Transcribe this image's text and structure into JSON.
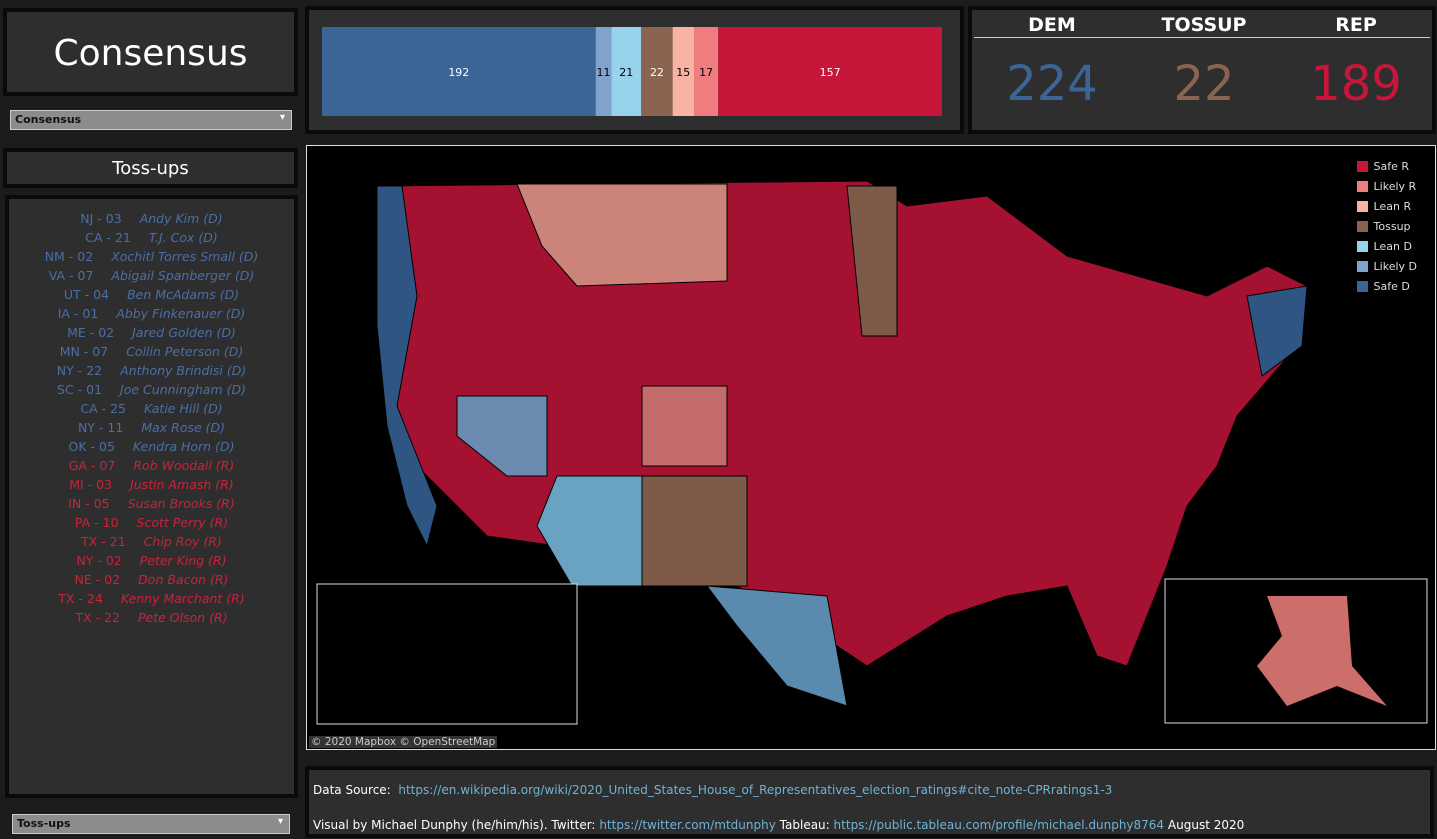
{
  "header": {
    "title": "Consensus",
    "dropdown": "Consensus"
  },
  "chart_data": {
    "type": "stacked-bar",
    "xlim": [
      0,
      435
    ],
    "series": [
      {
        "name": "Safe D",
        "color": "#3a6595",
        "text_color": "#ffffff",
        "values": [
          192
        ]
      },
      {
        "name": "Likely D",
        "color": "#7fa3cc",
        "text_color": "#000000",
        "values": [
          11
        ]
      },
      {
        "name": "Lean D",
        "color": "#98d3ee",
        "text_color": "#000000",
        "values": [
          21
        ]
      },
      {
        "name": "Tossup",
        "color": "#8a6450",
        "text_color": "#ffffff",
        "values": [
          22
        ]
      },
      {
        "name": "Lean R",
        "color": "#f8b3a3",
        "text_color": "#000000",
        "values": [
          15
        ]
      },
      {
        "name": "Likely R",
        "color": "#ef7d7f",
        "text_color": "#000000",
        "values": [
          17
        ]
      },
      {
        "name": "Safe R",
        "color": "#c8163a",
        "text_color": "#ffffff",
        "values": [
          157
        ]
      }
    ]
  },
  "totals": [
    {
      "label": "DEM",
      "value": 224,
      "color": "#3a6595"
    },
    {
      "label": "TOSSUP",
      "value": 22,
      "color": "#8a6450"
    },
    {
      "label": "REP",
      "value": 189,
      "color": "#c8163a"
    }
  ],
  "tossups": {
    "title": "Toss-ups",
    "dropdown": "Toss-ups",
    "rows": [
      {
        "district": "NJ - 03",
        "name": "Andy Kim (D)",
        "color": "#4a6fa5"
      },
      {
        "district": "CA - 21",
        "name": "T.J. Cox (D)",
        "color": "#4a6fa5"
      },
      {
        "district": "NM - 02",
        "name": "Xochitl Torres Small (D)",
        "color": "#4a6fa5"
      },
      {
        "district": "VA - 07",
        "name": "Abigail Spanberger (D)",
        "color": "#4a6fa5"
      },
      {
        "district": "UT - 04",
        "name": "Ben McAdams (D)",
        "color": "#4a6fa5"
      },
      {
        "district": "IA - 01",
        "name": "Abby Finkenauer (D)",
        "color": "#4a6fa5"
      },
      {
        "district": "ME - 02",
        "name": "Jared Golden (D)",
        "color": "#4a6fa5"
      },
      {
        "district": "MN - 07",
        "name": "Collin Peterson (D)",
        "color": "#4a6fa5"
      },
      {
        "district": "NY - 22",
        "name": "Anthony Brindisi (D)",
        "color": "#4a6fa5"
      },
      {
        "district": "SC - 01",
        "name": "Joe Cunningham (D)",
        "color": "#4a6fa5"
      },
      {
        "district": "CA - 25",
        "name": "Katie Hill (D)",
        "color": "#4a6fa5"
      },
      {
        "district": "NY - 11",
        "name": "Max Rose (D)",
        "color": "#4a6fa5"
      },
      {
        "district": "OK - 05",
        "name": "Kendra Horn (D)",
        "color": "#4a6fa5"
      },
      {
        "district": "GA - 07",
        "name": "Rob Woodall (R)",
        "color": "#c8233c"
      },
      {
        "district": "MI - 03",
        "name": "Justin Amash (R)",
        "color": "#c8233c"
      },
      {
        "district": "IN - 05",
        "name": "Susan Brooks (R)",
        "color": "#c8233c"
      },
      {
        "district": "PA - 10",
        "name": "Scott Perry (R)",
        "color": "#c8233c"
      },
      {
        "district": "TX - 21",
        "name": "Chip Roy (R)",
        "color": "#c8233c"
      },
      {
        "district": "NY - 02",
        "name": "Peter King (R)",
        "color": "#c8233c"
      },
      {
        "district": "NE - 02",
        "name": "Don Bacon (R)",
        "color": "#c8233c"
      },
      {
        "district": "TX - 24",
        "name": "Kenny Marchant (R)",
        "color": "#c8233c"
      },
      {
        "district": "TX - 22",
        "name": "Pete Olson (R)",
        "color": "#c8233c"
      }
    ]
  },
  "map": {
    "attribution": "© 2020 Mapbox  © OpenStreetMap"
  },
  "footer": {
    "source_label": "Data Source:",
    "source_url": "https://en.wikipedia.org/wiki/2020_United_States_House_of_Representatives_election_ratings#cite_note-CPRratings1-3",
    "credit": "Visual by Michael Dunphy (he/him/his). Twitter:",
    "twitter_url": "https://twitter.com/mtdunphy",
    "tableau_label": "Tableau:",
    "tableau_url": "https://public.tableau.com/profile/michael.dunphy8764",
    "date": "August 2020"
  }
}
